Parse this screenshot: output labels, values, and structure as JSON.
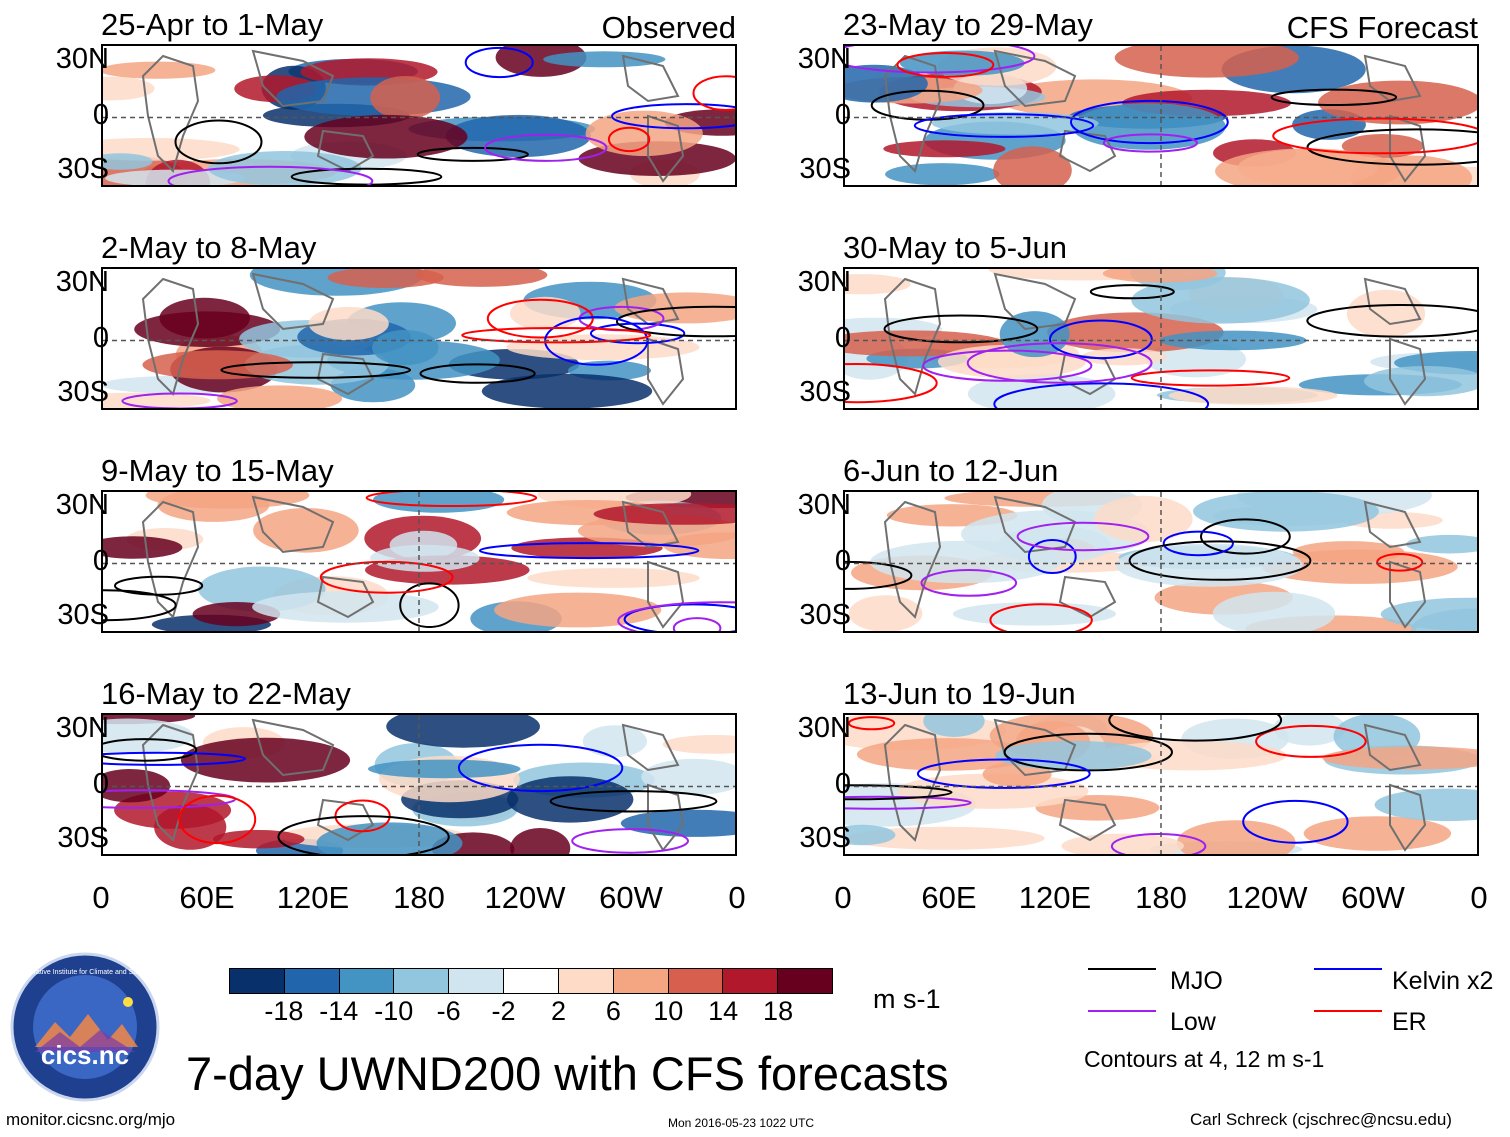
{
  "observed_label": "Observed",
  "forecast_label": "CFS Forecast",
  "observed_panels": [
    {
      "title": "25-Apr to 1-May"
    },
    {
      "title": "2-May to 8-May"
    },
    {
      "title": "9-May to 15-May"
    },
    {
      "title": "16-May to 22-May"
    }
  ],
  "forecast_panels": [
    {
      "title": "23-May to 29-May"
    },
    {
      "title": "30-May to 5-Jun"
    },
    {
      "title": "6-Jun to 12-Jun"
    },
    {
      "title": "13-Jun to 19-Jun"
    }
  ],
  "lat_labels": [
    "30N",
    "0",
    "30S"
  ],
  "lon_labels": [
    "0",
    "60E",
    "120E",
    "180",
    "120W",
    "60W",
    "0"
  ],
  "colorbar": {
    "colors": [
      "#08306b",
      "#2166ac",
      "#4393c3",
      "#92c5de",
      "#d1e5f0",
      "#ffffff",
      "#fddbc7",
      "#f4a582",
      "#d6604d",
      "#b2182b",
      "#67001f"
    ],
    "ticks": [
      "-18",
      "-14",
      "-10",
      "-6",
      "-2",
      "2",
      "6",
      "10",
      "14",
      "18"
    ],
    "units": "m s-1"
  },
  "legend": {
    "items": [
      {
        "label": "MJO",
        "color": "#000000"
      },
      {
        "label": "Kelvin x2",
        "color": "#0000ff"
      },
      {
        "label": "Low",
        "color": "#a020f0"
      },
      {
        "label": "ER",
        "color": "#ff0000"
      }
    ],
    "note": "Contours at 4, 12 m s-1"
  },
  "main_title": "7-day UWND200 with CFS forecasts",
  "logo_text": "cics.nc",
  "logo_ring_text": "Cooperative Institute for Climate and Satellites",
  "footer_left": "monitor.cicsnc.org/mjo",
  "footer_center": "Mon 2016-05-23 1022 UTC",
  "footer_right": "Carl Schreck (cjschrec@ncsu.edu)"
}
